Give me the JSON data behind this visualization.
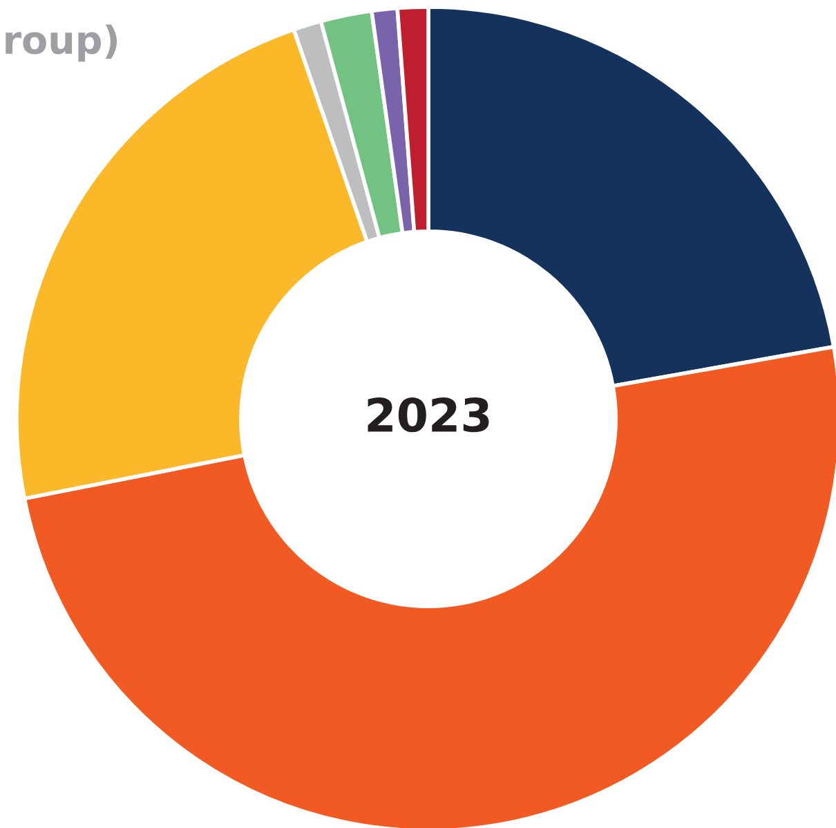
{
  "chart_data": {
    "type": "donut",
    "title": "roup)",
    "categories": [
      null,
      null,
      null,
      null,
      null,
      null,
      null
    ],
    "values": [
      22.2,
      49.7,
      22.8,
      1.1,
      2.0,
      1.0,
      1.2
    ],
    "colors": [
      "#14325c",
      "#f15a22",
      "#fbb829",
      "#bcbec0",
      "#72c383",
      "#7a63ab",
      "#be1e2d"
    ],
    "annotations": [
      "2023"
    ],
    "legend": false
  }
}
